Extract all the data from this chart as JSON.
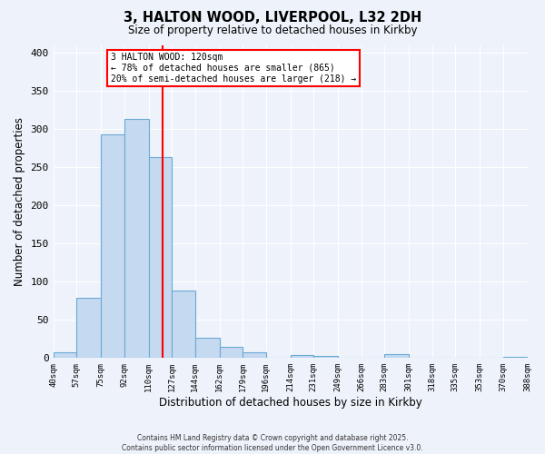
{
  "title": "3, HALTON WOOD, LIVERPOOL, L32 2DH",
  "subtitle": "Size of property relative to detached houses in Kirkby",
  "xlabel": "Distribution of detached houses by size in Kirkby",
  "ylabel": "Number of detached properties",
  "bin_labels": [
    "40sqm",
    "57sqm",
    "75sqm",
    "92sqm",
    "110sqm",
    "127sqm",
    "144sqm",
    "162sqm",
    "179sqm",
    "196sqm",
    "214sqm",
    "231sqm",
    "249sqm",
    "266sqm",
    "283sqm",
    "301sqm",
    "318sqm",
    "335sqm",
    "353sqm",
    "370sqm",
    "388sqm"
  ],
  "bin_edges": [
    40,
    57,
    75,
    92,
    110,
    127,
    144,
    162,
    179,
    196,
    214,
    231,
    249,
    266,
    283,
    301,
    318,
    335,
    353,
    370,
    388
  ],
  "bar_heights": [
    7,
    79,
    293,
    314,
    263,
    88,
    27,
    15,
    7,
    0,
    4,
    3,
    0,
    0,
    5,
    0,
    0,
    0,
    0,
    2
  ],
  "bar_color": "#c5d9f0",
  "bar_edge_color": "#6aaad4",
  "vline_x": 120,
  "vline_color": "red",
  "annotation_text": "3 HALTON WOOD: 120sqm\n← 78% of detached houses are smaller (865)\n20% of semi-detached houses are larger (218) →",
  "annotation_box_color": "white",
  "annotation_box_edge_color": "red",
  "ylim": [
    0,
    410
  ],
  "yticks": [
    0,
    50,
    100,
    150,
    200,
    250,
    300,
    350,
    400
  ],
  "footer_line1": "Contains HM Land Registry data © Crown copyright and database right 2025.",
  "footer_line2": "Contains public sector information licensed under the Open Government Licence v3.0.",
  "background_color": "#eef2fa"
}
